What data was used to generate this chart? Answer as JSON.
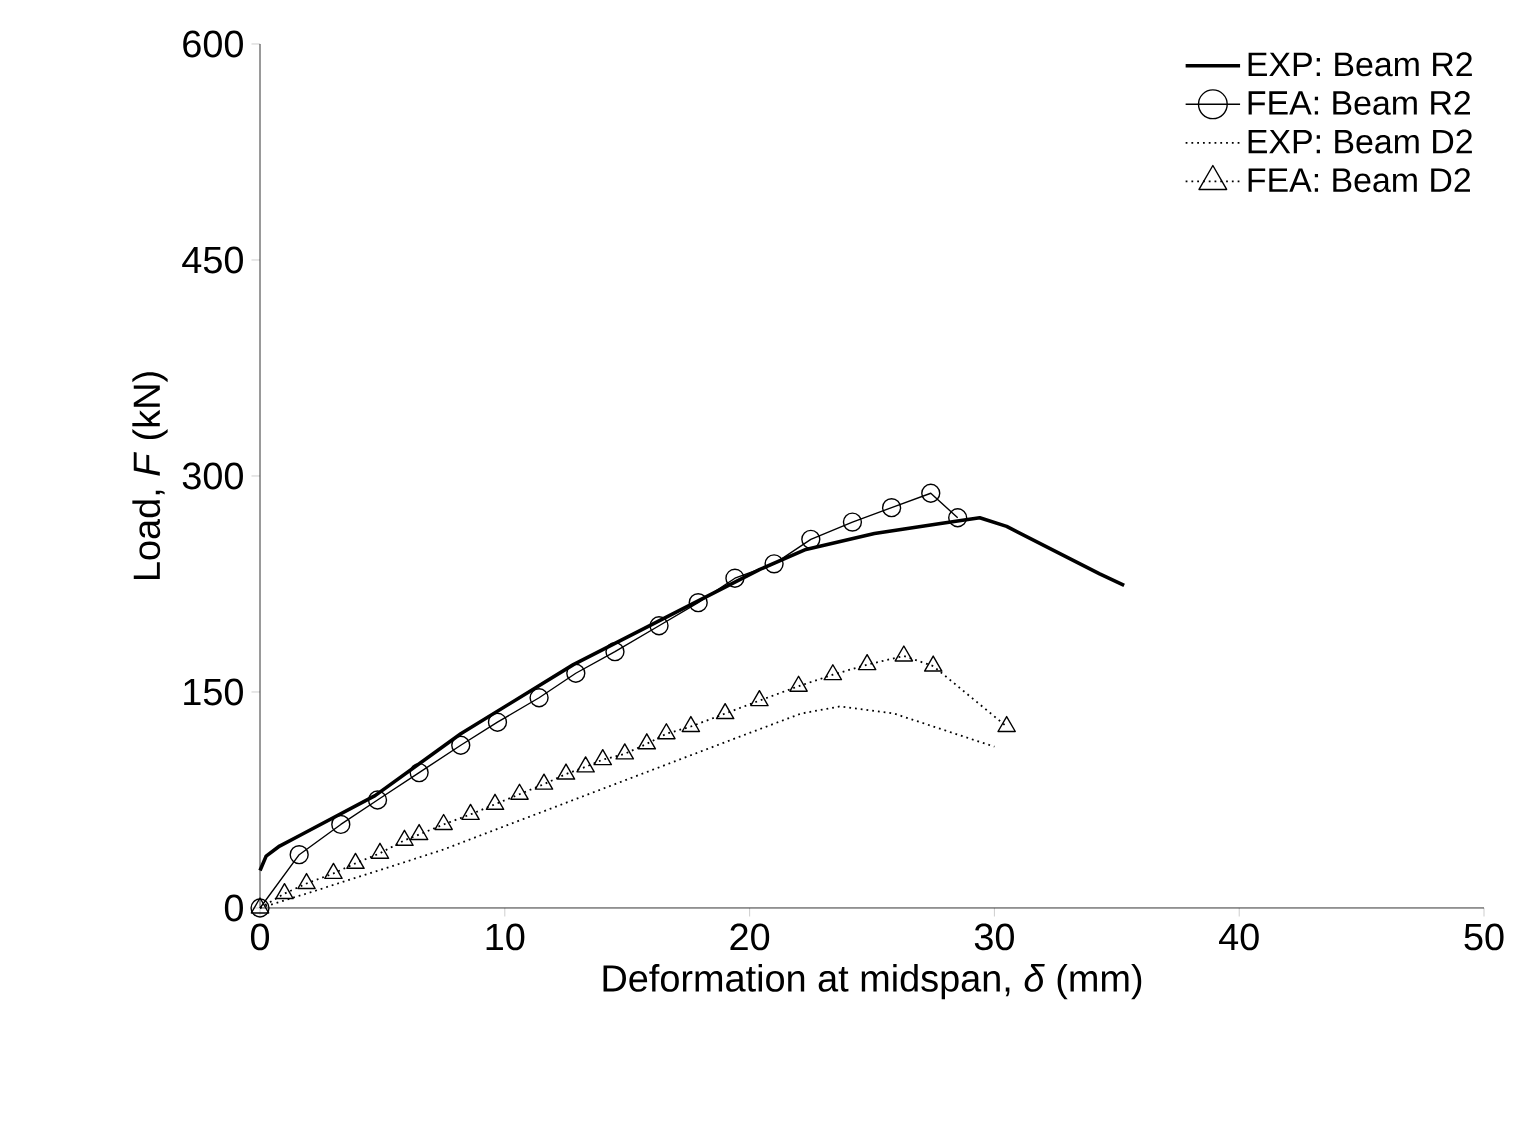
{
  "chart_data": {
    "type": "line",
    "xlabel": "Deformation at midspan, *δ* (mm)",
    "ylabel": "Load, *F* (kN)",
    "xlim": [
      0,
      50
    ],
    "ylim": [
      0,
      600
    ],
    "xticks": [
      0,
      10,
      20,
      30,
      40,
      50
    ],
    "yticks": [
      0,
      150,
      300,
      450,
      600
    ],
    "grid": false,
    "legend": "top right",
    "series": [
      {
        "name": "EXP: Beam R2",
        "color": "#000000",
        "marker": "none",
        "line_style": "solid",
        "x": [
          0,
          0.25,
          0.8,
          1.7,
          4.7,
          8.2,
          12.8,
          20.4,
          22.3,
          25.1,
          27.8,
          29.4,
          30.5,
          34.3,
          35.3
        ],
        "values": [
          26,
          36,
          43,
          51,
          78,
          121,
          169,
          235,
          249,
          260,
          267,
          271,
          265,
          232,
          224
        ]
      },
      {
        "name": "FEA: Beam R2",
        "color": "#000000",
        "marker": "circle",
        "line_style": "solid",
        "x": [
          0,
          1.6,
          3.3,
          4.8,
          6.5,
          8.2,
          9.7,
          11.4,
          12.9,
          14.5,
          16.3,
          17.9,
          19.4,
          21.0,
          22.5,
          24.2,
          25.8,
          27.4,
          28.5
        ],
        "values": [
          0,
          37,
          58,
          75,
          94,
          113,
          129,
          146,
          163,
          178,
          196,
          212,
          229,
          239,
          256,
          268,
          278,
          288,
          271
        ]
      },
      {
        "name": "EXP: Beam D2",
        "color": "#000000",
        "marker": "none",
        "line_style": "dotted",
        "x": [
          0,
          1.9,
          7.4,
          12.8,
          19.6,
          22.1,
          23.7,
          25.9,
          30.0
        ],
        "values": [
          0,
          10,
          40,
          75,
          119,
          135,
          140,
          135,
          112
        ]
      },
      {
        "name": "FEA: Beam D2",
        "color": "#000000",
        "marker": "triangle",
        "line_style": "dotted",
        "x": [
          0,
          1.0,
          1.9,
          3.0,
          3.9,
          4.9,
          5.9,
          6.5,
          7.5,
          8.6,
          9.6,
          10.6,
          11.6,
          12.5,
          13.3,
          14.0,
          14.9,
          15.8,
          16.6,
          17.6,
          19.0,
          20.4,
          22.0,
          23.4,
          24.8,
          26.3,
          27.5,
          30.5
        ],
        "values": [
          0,
          10,
          17,
          24,
          31,
          38,
          47,
          51,
          58,
          65,
          72,
          79,
          86,
          93,
          98,
          103,
          107,
          114,
          121,
          126,
          135,
          144,
          154,
          162,
          169,
          175,
          168,
          126
        ]
      }
    ]
  }
}
